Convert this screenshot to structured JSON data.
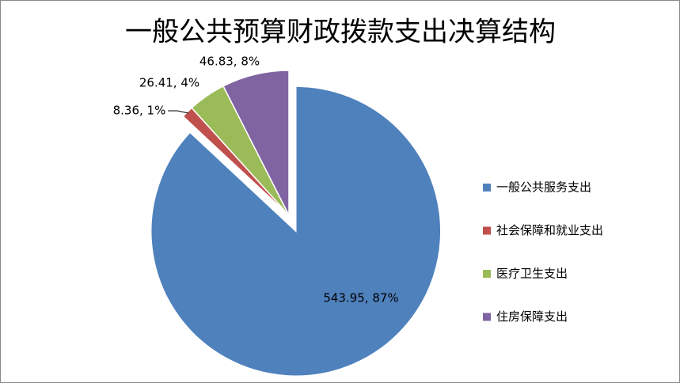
{
  "chart_data": {
    "type": "pie",
    "title": "一般公共预算财政拨款支出决算结构",
    "categories": [
      "一般公共服务支出",
      "社会保障和就业支出",
      "医疗卫生支出",
      "住房保障支出"
    ],
    "values": [
      543.95,
      8.36,
      26.41,
      46.83
    ],
    "value_labels": [
      "543.95, 87%",
      "8.36, 1%",
      "26.41, 4%",
      "46.83, 8%"
    ],
    "colors": [
      "#4f81bd",
      "#c0504d",
      "#9bbb59",
      "#8064a2"
    ],
    "legend": "right"
  }
}
